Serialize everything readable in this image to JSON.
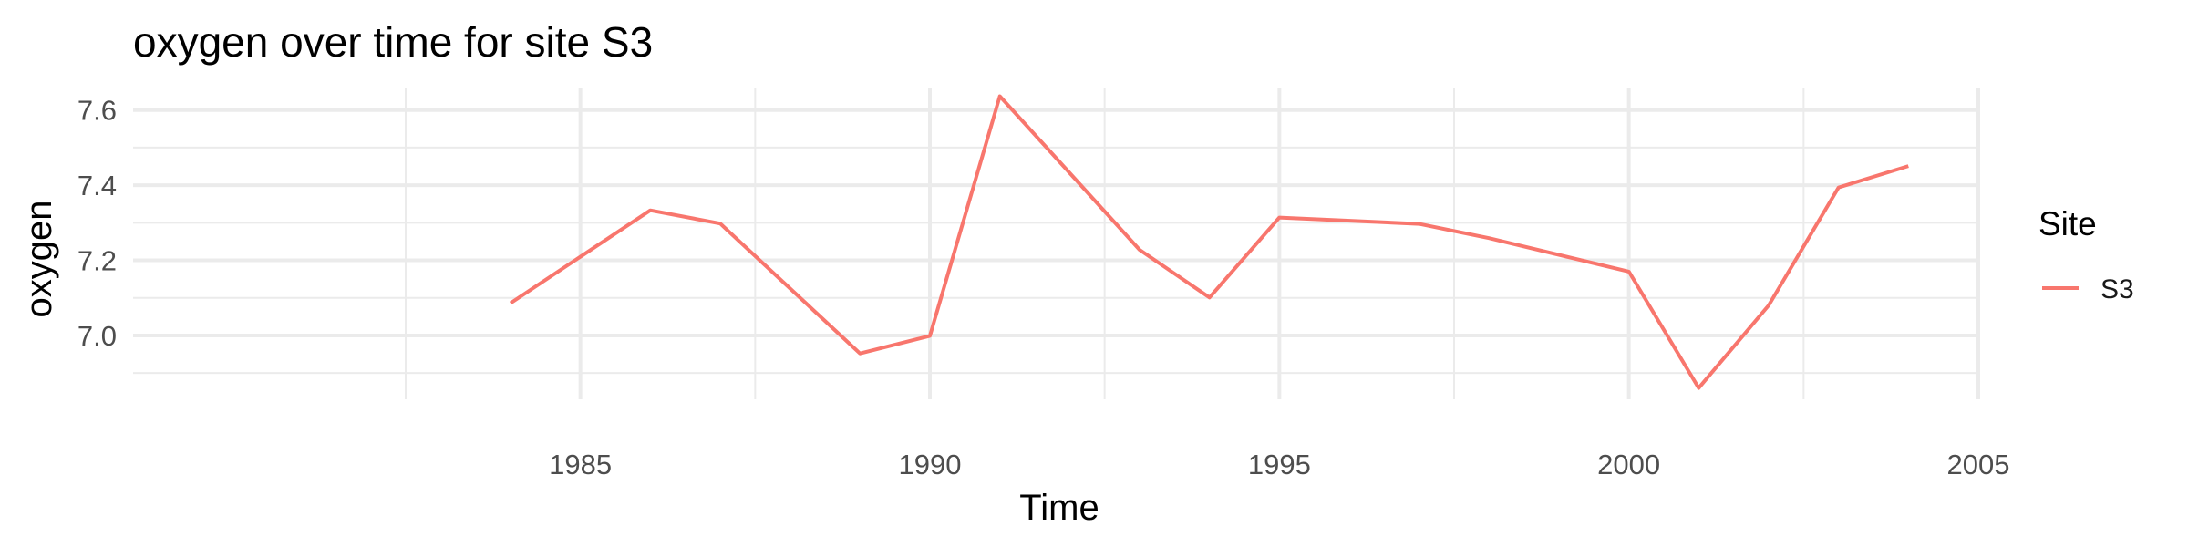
{
  "chart_data": {
    "type": "line",
    "title": "oxygen over time for site S3",
    "xlabel": "Time",
    "ylabel": "oxygen",
    "xlim": [
      1978.6,
      2005
    ],
    "ylim": [
      6.83,
      7.66
    ],
    "x_ticks": [
      1985,
      1990,
      1995,
      2000,
      2005
    ],
    "y_ticks": [
      7.0,
      7.2,
      7.4,
      7.6
    ],
    "x_tick_labels": [
      "1985",
      "1990",
      "1995",
      "2000",
      "2005"
    ],
    "y_tick_labels": [
      "7.0",
      "7.2",
      "7.4",
      "7.6"
    ],
    "grid": true,
    "legend": {
      "title": "Site",
      "position": "right"
    },
    "series": [
      {
        "name": "S3",
        "color": "#F8766D",
        "x": [
          1984,
          1986,
          1987,
          1989,
          1990,
          1991,
          1993,
          1994,
          1995,
          1997,
          1998,
          2000,
          2001,
          2002,
          2003,
          2004
        ],
        "y": [
          7.086,
          7.333,
          7.298,
          6.952,
          6.999,
          7.637,
          7.228,
          7.101,
          7.314,
          7.297,
          7.259,
          7.17,
          6.86,
          7.08,
          7.394,
          7.451
        ]
      }
    ]
  }
}
